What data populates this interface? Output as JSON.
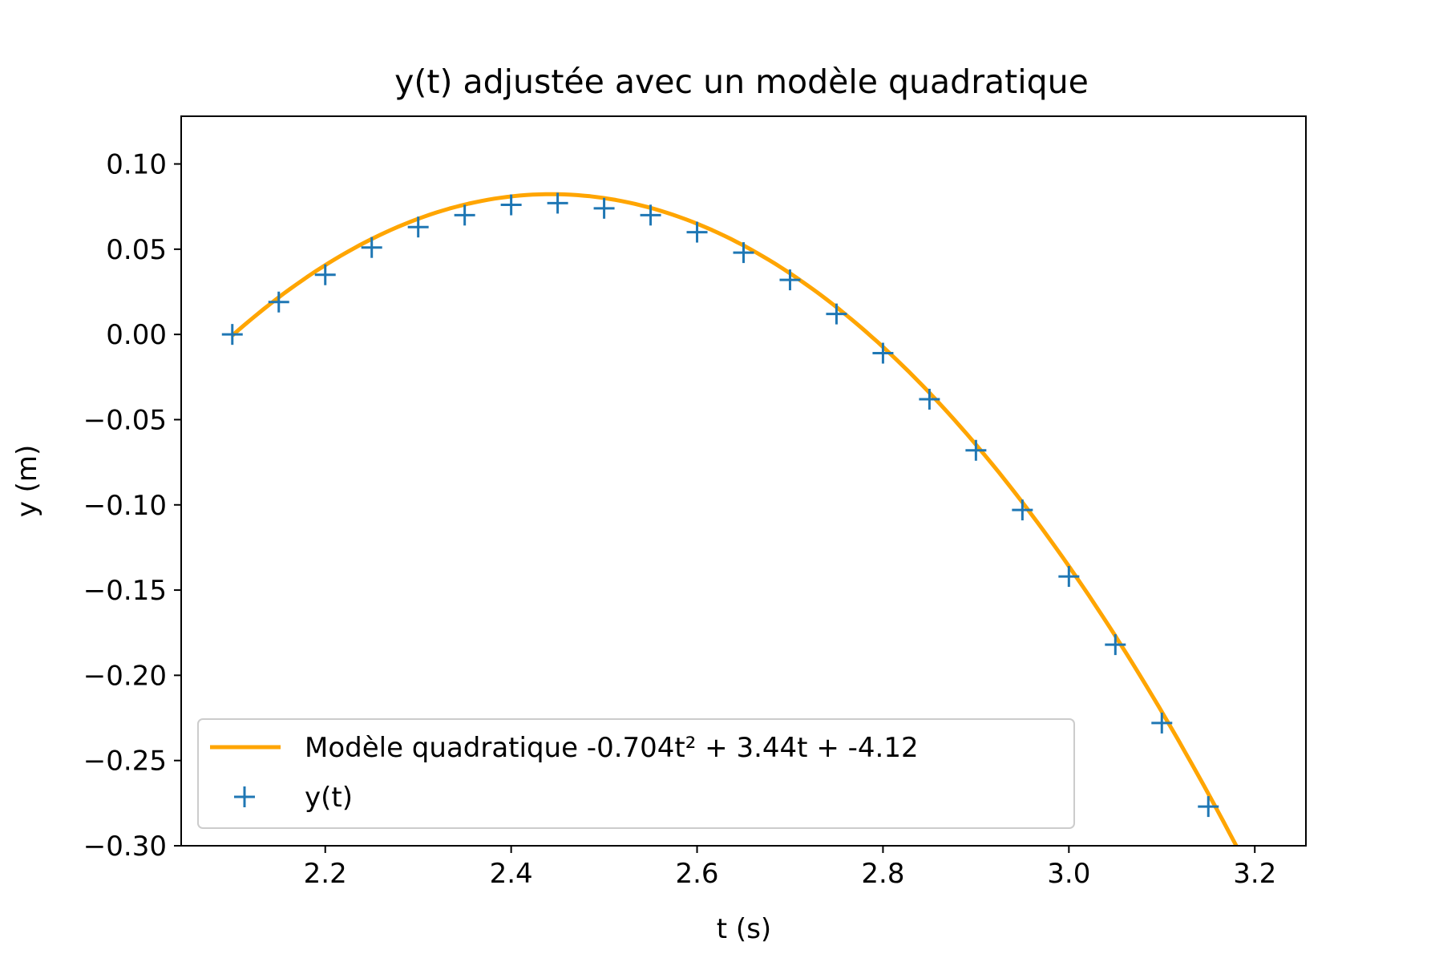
{
  "chart_data": {
    "type": "scatter",
    "title": "y(t) adjustée avec un modèle quadratique",
    "xlabel": "t (s)",
    "ylabel": "y (m)",
    "xlim": [
      2.045,
      3.255
    ],
    "ylim": [
      -0.3,
      0.128
    ],
    "x_ticks": [
      2.2,
      2.4,
      2.6,
      2.8,
      3.0,
      3.2
    ],
    "x_tick_labels": [
      "2.2",
      "2.4",
      "2.6",
      "2.8",
      "3.0",
      "3.2"
    ],
    "y_ticks": [
      0.1,
      0.05,
      0.0,
      -0.05,
      -0.1,
      -0.15,
      -0.2,
      -0.25,
      -0.3
    ],
    "y_tick_labels": [
      "0.10",
      "0.05",
      "0.00",
      "−0.05",
      "−0.10",
      "−0.15",
      "−0.20",
      "−0.25",
      "−0.30"
    ],
    "grid": false,
    "legend_position": "lower-left",
    "series": [
      {
        "name": "Modèle quadratique -0.704t² + 3.44t + -4.12",
        "kind": "line",
        "color": "#ffa500",
        "coefficients": [
          -0.704,
          3.44,
          -4.12
        ],
        "x_range": [
          2.1,
          3.2
        ]
      },
      {
        "name": "y(t)",
        "kind": "markers",
        "marker": "plus",
        "color": "#1f77b4",
        "x": [
          2.1,
          2.15,
          2.2,
          2.25,
          2.3,
          2.35,
          2.4,
          2.45,
          2.5,
          2.55,
          2.6,
          2.65,
          2.7,
          2.75,
          2.8,
          2.85,
          2.9,
          2.95,
          3.0,
          3.05,
          3.1,
          3.15
        ],
        "y": [
          0.0,
          0.019,
          0.035,
          0.051,
          0.063,
          0.07,
          0.076,
          0.077,
          0.074,
          0.07,
          0.06,
          0.048,
          0.032,
          0.012,
          -0.011,
          -0.038,
          -0.068,
          -0.103,
          -0.142,
          -0.182,
          -0.228,
          -0.277
        ]
      }
    ]
  }
}
